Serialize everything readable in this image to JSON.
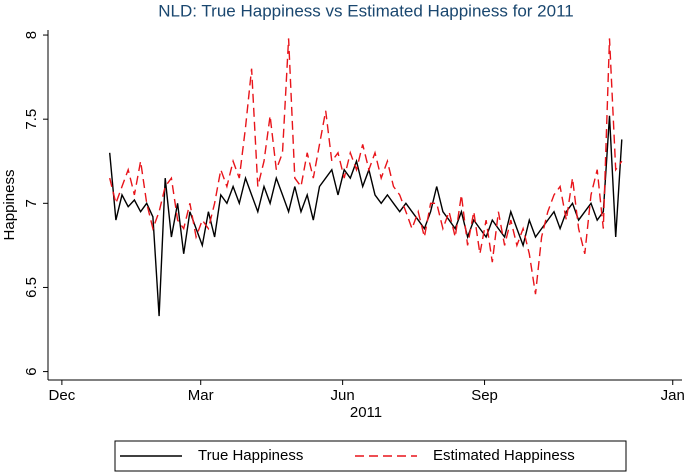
{
  "chart_data": {
    "type": "line",
    "title": "NLD: True Happiness vs Estimated Happiness for 2011",
    "xlabel": "2011",
    "ylabel": "Happiness",
    "x": [
      31,
      35,
      39,
      43,
      47,
      51,
      55,
      59,
      63,
      67,
      71,
      75,
      79,
      83,
      87,
      91,
      95,
      99,
      103,
      107,
      111,
      115,
      119,
      123,
      127,
      131,
      135,
      139,
      143,
      147,
      151,
      155,
      159,
      163,
      167,
      171,
      175,
      179,
      183,
      187,
      191,
      195,
      199,
      203,
      207,
      211,
      215,
      219,
      223,
      227,
      231,
      235,
      239,
      243,
      247,
      251,
      255,
      259,
      263,
      267,
      271,
      275,
      279,
      283,
      287,
      291,
      295,
      299,
      303,
      307,
      311,
      315,
      319,
      323,
      327,
      331,
      335,
      339,
      343,
      347,
      351,
      355,
      359,
      363
    ],
    "series": [
      {
        "name": "True Happiness",
        "color": "#000000",
        "line_style": "solid",
        "values": [
          7.3,
          6.9,
          7.05,
          6.98,
          7.02,
          6.95,
          7.0,
          6.92,
          6.33,
          7.15,
          6.8,
          7.0,
          6.7,
          6.95,
          6.85,
          6.75,
          6.95,
          6.8,
          7.05,
          7.0,
          7.1,
          7.0,
          7.15,
          7.05,
          6.95,
          7.1,
          7.0,
          7.15,
          7.05,
          6.95,
          7.1,
          6.95,
          7.05,
          6.9,
          7.1,
          7.15,
          7.2,
          7.05,
          7.2,
          7.15,
          7.25,
          7.1,
          7.2,
          7.05,
          7.0,
          7.05,
          7.0,
          6.95,
          7.0,
          6.95,
          6.9,
          6.85,
          6.95,
          7.1,
          6.95,
          6.9,
          6.85,
          6.95,
          6.8,
          6.9,
          6.85,
          6.8,
          6.9,
          6.85,
          6.8,
          6.95,
          6.85,
          6.75,
          6.9,
          6.8,
          6.85,
          6.9,
          6.95,
          6.85,
          6.95,
          7.0,
          6.9,
          6.95,
          7.0,
          6.9,
          6.95,
          7.52,
          6.8,
          7.38
        ]
      },
      {
        "name": "Estimated Happiness",
        "color": "#e8141a",
        "line_style": "dashed",
        "values": [
          7.15,
          7.0,
          7.1,
          7.2,
          7.05,
          7.25,
          7.0,
          6.85,
          6.95,
          7.1,
          7.15,
          6.9,
          6.85,
          7.0,
          6.8,
          6.9,
          6.85,
          7.0,
          7.2,
          7.1,
          7.25,
          7.15,
          7.45,
          7.8,
          7.1,
          7.25,
          7.52,
          7.2,
          7.3,
          7.98,
          7.15,
          7.1,
          7.3,
          7.15,
          7.35,
          7.55,
          7.25,
          7.3,
          7.15,
          7.3,
          7.2,
          7.35,
          7.2,
          7.3,
          7.15,
          7.25,
          7.1,
          7.05,
          6.95,
          6.85,
          6.95,
          6.8,
          7.0,
          7.0,
          6.85,
          6.95,
          6.8,
          7.05,
          6.75,
          6.95,
          6.7,
          6.9,
          6.65,
          6.95,
          6.75,
          6.9,
          6.75,
          6.85,
          6.7,
          6.46,
          6.8,
          6.95,
          7.05,
          7.1,
          6.9,
          7.15,
          6.85,
          6.7,
          7.05,
          7.2,
          6.85,
          7.98,
          7.2,
          7.25
        ]
      }
    ],
    "xlim": [
      -9,
      402
    ],
    "xticks": [
      {
        "value": 0,
        "label": "Dec"
      },
      {
        "value": 90,
        "label": "Mar"
      },
      {
        "value": 182,
        "label": "Jun"
      },
      {
        "value": 274,
        "label": "Sep"
      },
      {
        "value": 396,
        "label": "Jan"
      }
    ],
    "ylim": [
      5.95,
      8.03
    ],
    "yticks": [
      6,
      6.5,
      7,
      7.5,
      8
    ],
    "grid": false,
    "legend": "bottom"
  }
}
